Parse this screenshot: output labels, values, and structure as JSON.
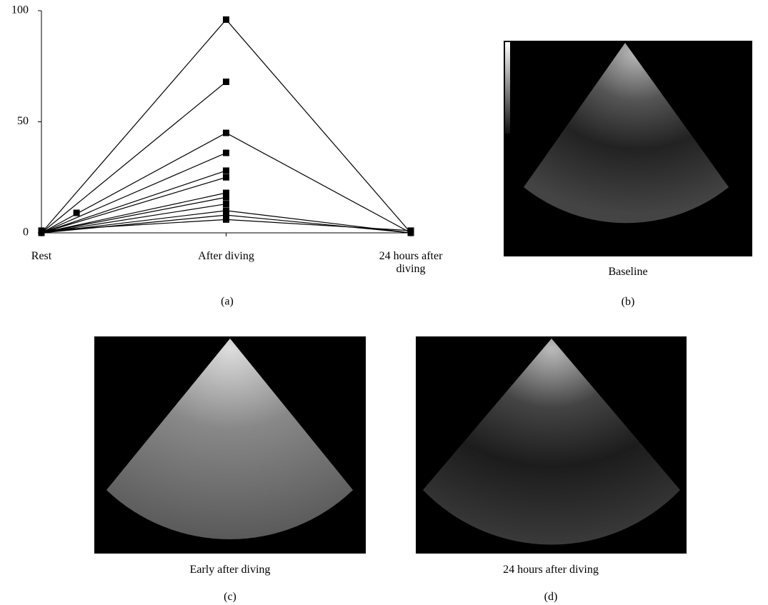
{
  "chart_data": {
    "type": "line",
    "color": "#000000",
    "x": [
      0,
      1,
      2
    ],
    "xticks": [
      {
        "value": 0,
        "label": "Rest"
      },
      {
        "value": 1,
        "label": "After diving"
      },
      {
        "value": 2,
        "label": "24 hours after diving"
      }
    ],
    "xlim": [
      0,
      2
    ],
    "ylim": [
      0,
      100
    ],
    "yticks": [
      0,
      50,
      100
    ],
    "grid": false,
    "series": [
      {
        "values": [
          0,
          96,
          0
        ]
      },
      {
        "values": [
          0,
          68,
          null
        ]
      },
      {
        "values": [
          0,
          45,
          0
        ]
      },
      {
        "values": [
          0,
          36,
          null
        ]
      },
      {
        "values": [
          0,
          28,
          null
        ]
      },
      {
        "values": [
          0,
          25,
          null
        ]
      },
      {
        "values": [
          0,
          18,
          null
        ]
      },
      {
        "values": [
          0,
          16,
          null
        ]
      },
      {
        "values": [
          0,
          13,
          null
        ]
      },
      {
        "values": [
          0,
          10,
          0
        ]
      },
      {
        "values": [
          0,
          8,
          0
        ]
      },
      {
        "values": [
          1,
          6,
          1
        ]
      },
      {
        "x": [
          0.19
        ],
        "values": [
          9
        ]
      }
    ],
    "panel_label": "(a)"
  },
  "panels": [
    {
      "caption": "Baseline",
      "label": "(b)"
    },
    {
      "caption": "Early after diving",
      "label": "(c)"
    },
    {
      "caption": "24 hours after diving",
      "label": "(d)"
    }
  ]
}
